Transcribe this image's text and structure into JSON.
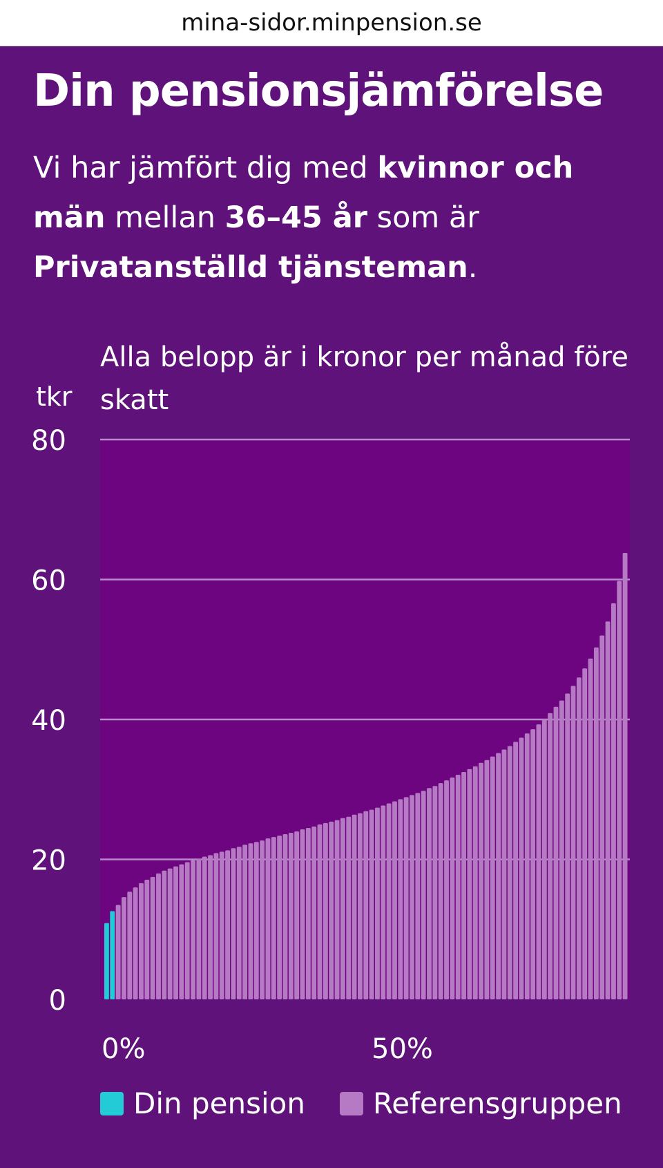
{
  "browser": {
    "url": "mina-sidor.minpension.se"
  },
  "page": {
    "title": "Din pensionsjämförelse",
    "intro": {
      "t1": "Vi har jämfört dig med ",
      "b1": "kvinnor och män",
      "t2": " mellan ",
      "b2": "36–45 år",
      "t3": " som är ",
      "b3": "Privatanställd tjänsteman",
      "t4": "."
    }
  },
  "colors": {
    "background": "#5f127a",
    "plot_background": "#6e0580",
    "own_pension": "#22cbd6",
    "reference": "#b57ac3",
    "gridline": "#b98acb"
  },
  "chart_data": {
    "type": "bar",
    "subtitle": "Alla belopp är i kronor per månad före skatt",
    "ylabel": "tkr",
    "ylim": [
      0,
      80
    ],
    "yticks": [
      0,
      20,
      40,
      60,
      80
    ],
    "xticks": [
      "0%",
      "50%"
    ],
    "grid": true,
    "legend_placement": "bottom",
    "series": [
      {
        "name": "Din pension",
        "color": "#22cbd6",
        "values": [
          10.9,
          12.6
        ]
      },
      {
        "name": "Referensgruppen",
        "color": "#b57ac3",
        "values": [
          13.5,
          14.6,
          15.4,
          16.0,
          16.6,
          17.1,
          17.5,
          18.0,
          18.4,
          18.7,
          19.0,
          19.3,
          19.6,
          19.9,
          20.1,
          20.4,
          20.6,
          20.9,
          21.1,
          21.3,
          21.6,
          21.8,
          22.1,
          22.3,
          22.5,
          22.7,
          23.0,
          23.2,
          23.4,
          23.6,
          23.8,
          24.0,
          24.3,
          24.5,
          24.7,
          25.0,
          25.2,
          25.4,
          25.6,
          25.9,
          26.1,
          26.4,
          26.6,
          26.9,
          27.1,
          27.4,
          27.7,
          28.0,
          28.3,
          28.6,
          28.9,
          29.2,
          29.5,
          29.8,
          30.2,
          30.5,
          30.9,
          31.3,
          31.7,
          32.1,
          32.5,
          32.9,
          33.3,
          33.8,
          34.2,
          34.7,
          35.2,
          35.7,
          36.2,
          36.8,
          37.4,
          38.0,
          38.6,
          39.3,
          40.0,
          40.9,
          41.8,
          42.7,
          43.7,
          44.8,
          46.0,
          47.3,
          48.7,
          50.3,
          52.0,
          54.0,
          56.6,
          59.8,
          63.8
        ]
      }
    ]
  }
}
